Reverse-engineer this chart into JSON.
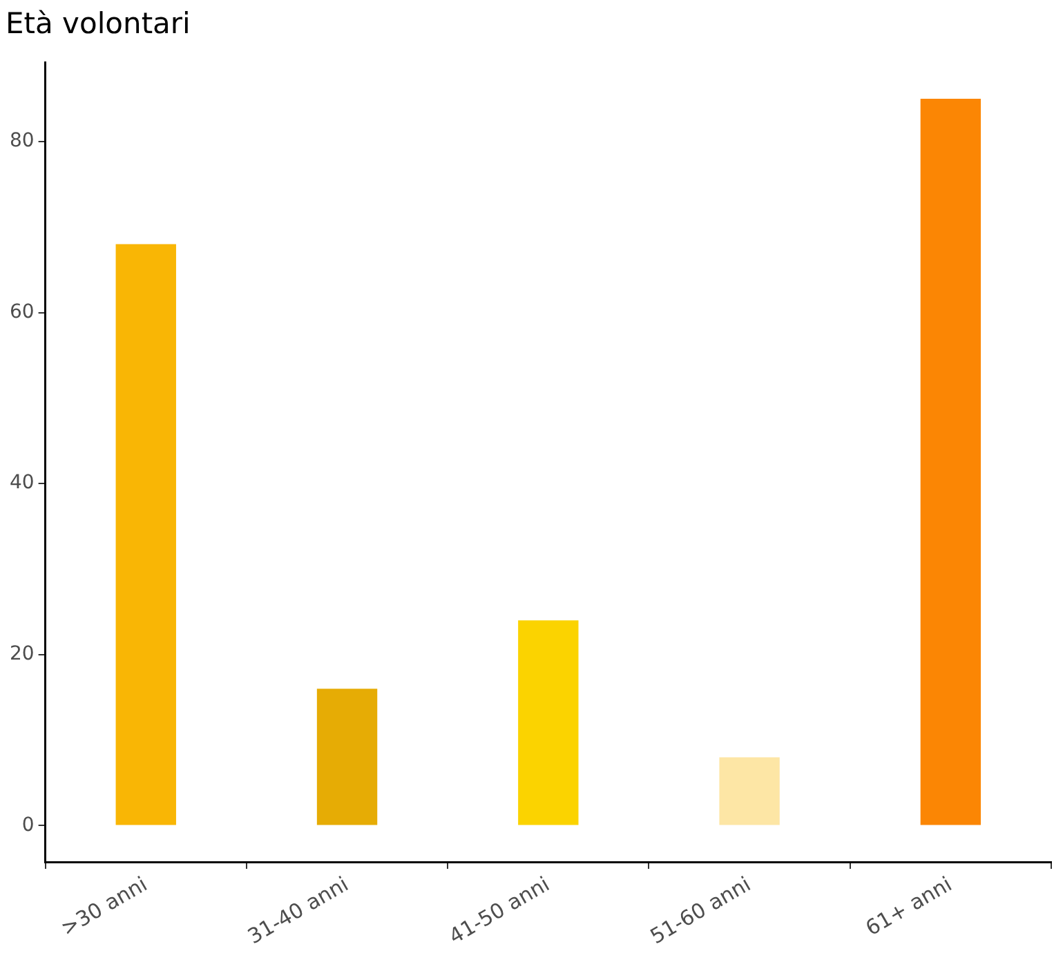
{
  "chart_data": {
    "type": "bar",
    "title": "Età volontari",
    "categories": [
      ">30 anni",
      "31-40 anni",
      "41-50 anni",
      "51-60 anni",
      "61+ anni"
    ],
    "values": [
      68,
      16,
      24,
      8,
      85
    ],
    "colors": [
      "#f9b605",
      "#e6ac05",
      "#fbd300",
      "#fde6a5",
      "#fb8604"
    ],
    "ylim": [
      -4.25,
      89.25
    ],
    "yticks": [
      0,
      20,
      40,
      60,
      80
    ],
    "grid": false,
    "legend": false
  }
}
